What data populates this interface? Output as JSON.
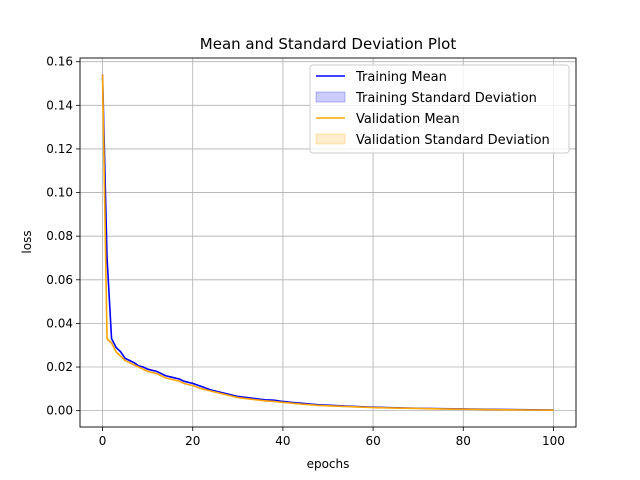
{
  "chart_data": {
    "type": "line",
    "title": "Mean and Standard Deviation Plot",
    "xlabel": "epochs",
    "ylabel": "loss",
    "xlim": [
      -5,
      105
    ],
    "ylim": [
      -0.0075,
      0.1617
    ],
    "xticks": [
      0,
      20,
      40,
      60,
      80,
      100
    ],
    "xtick_labels": [
      "0",
      "20",
      "40",
      "60",
      "80",
      "100"
    ],
    "yticks": [
      0.0,
      0.02,
      0.04,
      0.06,
      0.08,
      0.1,
      0.12,
      0.14,
      0.16
    ],
    "ytick_labels": [
      "0.00",
      "0.02",
      "0.04",
      "0.06",
      "0.08",
      "0.10",
      "0.12",
      "0.14",
      "0.16"
    ],
    "grid": true,
    "legend_position": "top-right",
    "legend": [
      {
        "label": "Training Mean",
        "kind": "line",
        "color": "#0000ff"
      },
      {
        "label": "Training Standard Deviation",
        "kind": "band",
        "color": "#0000ff"
      },
      {
        "label": "Validation Mean",
        "kind": "line",
        "color": "#ffa500"
      },
      {
        "label": "Validation Standard Deviation",
        "kind": "band",
        "color": "#ffa500"
      }
    ],
    "series": [
      {
        "name": "Training Mean",
        "color": "#0000ff",
        "band_color": "#0000ff",
        "x": [
          0,
          1,
          2,
          3,
          4,
          5,
          6,
          7,
          8,
          9,
          10,
          11,
          12,
          13,
          14,
          15,
          16,
          17,
          18,
          19,
          20,
          22,
          24,
          26,
          28,
          30,
          32,
          34,
          36,
          38,
          40,
          42,
          44,
          46,
          48,
          50,
          55,
          60,
          65,
          70,
          75,
          80,
          85,
          90,
          95,
          100
        ],
        "y": [
          0.154,
          0.07,
          0.033,
          0.029,
          0.027,
          0.024,
          0.023,
          0.022,
          0.0205,
          0.02,
          0.019,
          0.0185,
          0.018,
          0.017,
          0.016,
          0.0155,
          0.015,
          0.0145,
          0.0135,
          0.013,
          0.0125,
          0.011,
          0.0095,
          0.0085,
          0.0075,
          0.0065,
          0.006,
          0.0055,
          0.005,
          0.0048,
          0.0042,
          0.0038,
          0.0034,
          0.003,
          0.0027,
          0.0025,
          0.002,
          0.0016,
          0.0013,
          0.0011,
          0.0009,
          0.0008,
          0.0006,
          0.0005,
          0.0004,
          0.0003
        ],
        "std": [
          0.001,
          0.001,
          0.0008,
          0.0006,
          0.0005,
          0.0005,
          0.0004,
          0.0004,
          0.0004,
          0.0004,
          0.0003,
          0.0003,
          0.0003,
          0.0003,
          0.0003,
          0.0003,
          0.0003,
          0.0002,
          0.0002,
          0.0002,
          0.0002,
          0.0002,
          0.0002,
          0.0002,
          0.0002,
          0.0001,
          0.0001,
          0.0001,
          0.0001,
          0.0001,
          0.0001,
          0.0001,
          0.0001,
          0.0001,
          0.0001,
          0.0001,
          0.0001,
          0.0001,
          0.0001,
          0.0001,
          0.0001,
          0.0001,
          0.0001,
          0.0001,
          0.0001,
          0.0001
        ]
      },
      {
        "name": "Validation Mean",
        "color": "#ffa500",
        "band_color": "#ffa500",
        "x": [
          0,
          1,
          2,
          3,
          4,
          5,
          6,
          7,
          8,
          9,
          10,
          11,
          12,
          13,
          14,
          15,
          16,
          17,
          18,
          19,
          20,
          22,
          24,
          26,
          28,
          30,
          32,
          34,
          36,
          38,
          40,
          42,
          44,
          46,
          48,
          50,
          55,
          60,
          65,
          70,
          75,
          80,
          85,
          90,
          95,
          100
        ],
        "y": [
          0.154,
          0.033,
          0.031,
          0.027,
          0.025,
          0.023,
          0.022,
          0.021,
          0.02,
          0.019,
          0.018,
          0.0175,
          0.017,
          0.016,
          0.015,
          0.0145,
          0.014,
          0.0135,
          0.0125,
          0.012,
          0.0115,
          0.01,
          0.009,
          0.008,
          0.007,
          0.006,
          0.0055,
          0.005,
          0.0045,
          0.0042,
          0.0038,
          0.0034,
          0.003,
          0.0027,
          0.0024,
          0.0022,
          0.0018,
          0.0014,
          0.0012,
          0.001,
          0.0008,
          0.0007,
          0.0005,
          0.0004,
          0.0003,
          0.0002
        ],
        "std": [
          0.001,
          0.001,
          0.0008,
          0.0006,
          0.0005,
          0.0005,
          0.0004,
          0.0004,
          0.0004,
          0.0004,
          0.0003,
          0.0003,
          0.0003,
          0.0003,
          0.0003,
          0.0003,
          0.0003,
          0.0002,
          0.0002,
          0.0002,
          0.0002,
          0.0002,
          0.0002,
          0.0002,
          0.0002,
          0.0001,
          0.0001,
          0.0001,
          0.0001,
          0.0001,
          0.0001,
          0.0001,
          0.0001,
          0.0001,
          0.0001,
          0.0001,
          0.0001,
          0.0001,
          0.0001,
          0.0001,
          0.0001,
          0.0001,
          0.0001,
          0.0001,
          0.0001,
          0.0001
        ]
      }
    ]
  }
}
